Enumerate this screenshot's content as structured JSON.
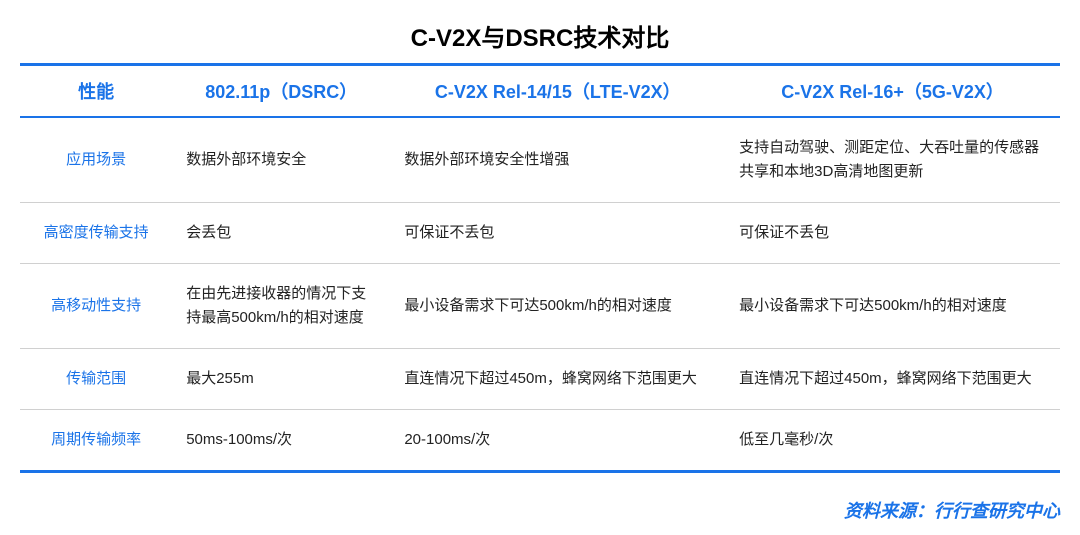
{
  "title": "C-V2X与DSRC技术对比",
  "accent_color": "#1a73e8",
  "text_color": "#222222",
  "background_color": "#ffffff",
  "columns": [
    {
      "key": "perf",
      "label": "性能"
    },
    {
      "key": "dsrc",
      "label": "802.11p（DSRC）"
    },
    {
      "key": "lte",
      "label": "C-V2X Rel-14/15（LTE-V2X）"
    },
    {
      "key": "fiveg",
      "label": "C-V2X Rel-16+（5G-V2X）"
    }
  ],
  "rows": [
    {
      "label": "应用场景",
      "dsrc": "数据外部环境安全",
      "lte": "数据外部环境安全性增强",
      "fiveg": "支持自动驾驶、测距定位、大吞吐量的传感器共享和本地3D高清地图更新"
    },
    {
      "label": "高密度传输支持",
      "dsrc": "会丢包",
      "lte": "可保证不丢包",
      "fiveg": "可保证不丢包"
    },
    {
      "label": "高移动性支持",
      "dsrc": "在由先进接收器的情况下支持最高500km/h的相对速度",
      "lte": "最小设备需求下可达500km/h的相对速度",
      "fiveg": "最小设备需求下可达500km/h的相对速度"
    },
    {
      "label": "传输范围",
      "dsrc": "最大255m",
      "lte": "直连情况下超过450m，蜂窝网络下范围更大",
      "fiveg": "直连情况下超过450m，蜂窝网络下范围更大"
    },
    {
      "label": "周期传输频率",
      "dsrc": "50ms-100ms/次",
      "lte": "20-100ms/次",
      "fiveg": "低至几毫秒/次"
    }
  ],
  "source": "资料来源：行行查研究中心"
}
